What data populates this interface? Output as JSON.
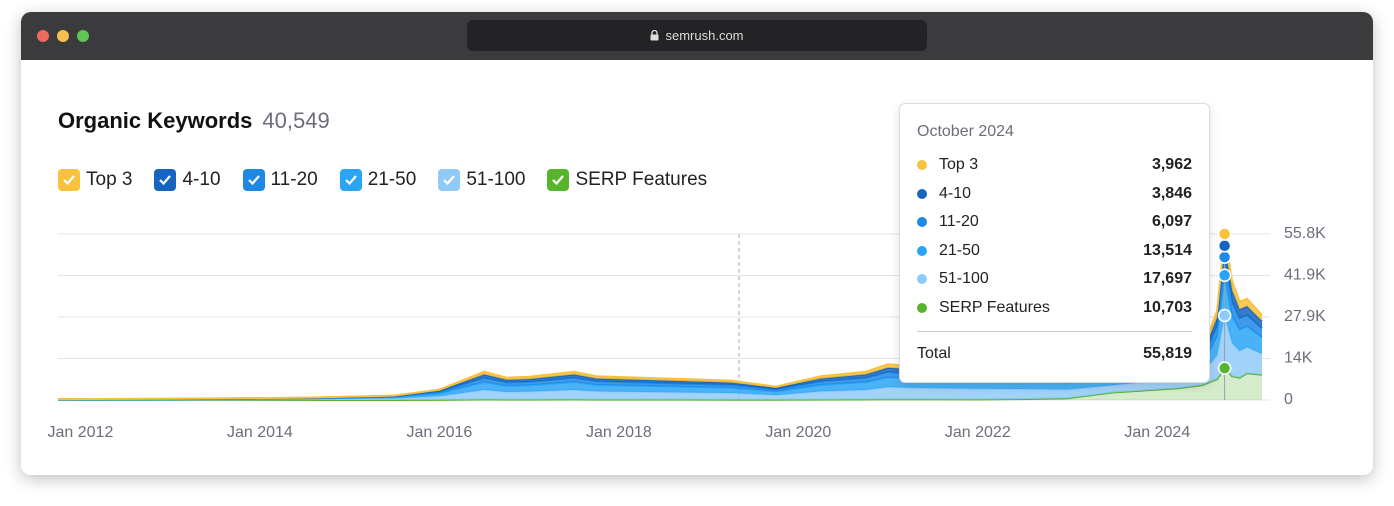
{
  "browser": {
    "url": "semrush.com"
  },
  "header": {
    "title": "Organic Keywords",
    "count": "40,549"
  },
  "chart_data": {
    "type": "stacked-area",
    "x": [
      "2011-10",
      "2013-01",
      "2014-07",
      "2015-07",
      "2016-01",
      "2016-07",
      "2016-10",
      "2017-01",
      "2017-07",
      "2017-10",
      "2018-04",
      "2018-10",
      "2019-04",
      "2019-10",
      "2020-04",
      "2020-10",
      "2021-01",
      "2021-07",
      "2022-01",
      "2022-07",
      "2023-01",
      "2023-07",
      "2024-01",
      "2024-04",
      "2024-07",
      "2024-09",
      "2024-10",
      "2024-11",
      "2024-12",
      "2025-01",
      "2025-03"
    ],
    "series": [
      {
        "name": "Top 3",
        "color": "#f9c23c",
        "values": [
          30,
          40,
          80,
          145,
          340,
          940,
          735,
          770,
          940,
          795,
          735,
          690,
          640,
          440,
          795,
          940,
          1180,
          1080,
          1020,
          970,
          840,
          700,
          850,
          1000,
          1100,
          2300,
          3962,
          3200,
          2500,
          2500,
          2000
        ]
      },
      {
        "name": "4-10",
        "color": "#1565c0",
        "values": [
          36,
          48,
          96,
          180,
          415,
          1120,
          885,
          920,
          1120,
          945,
          885,
          830,
          770,
          530,
          945,
          1120,
          1420,
          1300,
          1240,
          1160,
          1010,
          840,
          1020,
          1200,
          1320,
          2760,
          3846,
          3800,
          3000,
          3000,
          2400
        ]
      },
      {
        "name": "11-20",
        "color": "#1e88e5",
        "values": [
          45,
          60,
          120,
          220,
          520,
          1400,
          1110,
          1150,
          1400,
          1180,
          1110,
          1030,
          960,
          660,
          1180,
          1400,
          1770,
          1620,
          1550,
          1450,
          1260,
          1050,
          1270,
          1500,
          1650,
          3450,
          6097,
          4800,
          3800,
          3750,
          3000
        ]
      },
      {
        "name": "21-50",
        "color": "#2aa4f4",
        "values": [
          84,
          112,
          224,
          415,
          965,
          2620,
          2070,
          2150,
          2620,
          2200,
          2070,
          1930,
          1790,
          1240,
          2200,
          2620,
          3300,
          3020,
          2890,
          2720,
          2350,
          1960,
          2380,
          2800,
          3080,
          6440,
          13514,
          9000,
          7200,
          7000,
          5600
        ]
      },
      {
        "name": "51-100",
        "color": "#90caf9",
        "values": [
          105,
          140,
          280,
          520,
          1210,
          3270,
          2580,
          2690,
          3270,
          2750,
          2580,
          2410,
          2240,
          1550,
          2750,
          3270,
          4130,
          3780,
          3620,
          3400,
          2940,
          2450,
          2980,
          3500,
          3850,
          8050,
          17697,
          11200,
          9000,
          8750,
          7000
        ]
      },
      {
        "name": "SERP Features",
        "color": "#56b42d",
        "values": [
          0,
          0,
          0,
          20,
          50,
          150,
          120,
          120,
          150,
          130,
          120,
          110,
          100,
          80,
          130,
          150,
          200,
          200,
          180,
          300,
          600,
          2500,
          3500,
          4000,
          5000,
          7000,
          10703,
          8000,
          7500,
          9000,
          8500
        ]
      }
    ],
    "xlim": [
      "2011-10",
      "2025-03"
    ],
    "xticks": [
      {
        "value": "2012-01",
        "label": "Jan 2012"
      },
      {
        "value": "2014-01",
        "label": "Jan 2014"
      },
      {
        "value": "2016-01",
        "label": "Jan 2016"
      },
      {
        "value": "2018-01",
        "label": "Jan 2018"
      },
      {
        "value": "2020-01",
        "label": "Jan 2020"
      },
      {
        "value": "2022-01",
        "label": "Jan 2022"
      },
      {
        "value": "2024-01",
        "label": "Jan 2024"
      }
    ],
    "ylim": [
      0,
      55800
    ],
    "yticks": [
      0,
      {
        "value": 13950,
        "label": "14K"
      },
      {
        "value": 27900,
        "label": "27.9K"
      },
      {
        "value": 41850,
        "label": "41.9K"
      },
      {
        "value": 55800,
        "label": "55.8K"
      }
    ],
    "grid": true
  },
  "tooltip": {
    "title": "October 2024",
    "x": "2024-10",
    "values": [
      "3,962",
      "3,846",
      "6,097",
      "13,514",
      "17,697",
      "10,703"
    ],
    "total_label": "Total",
    "total": "55,819"
  }
}
